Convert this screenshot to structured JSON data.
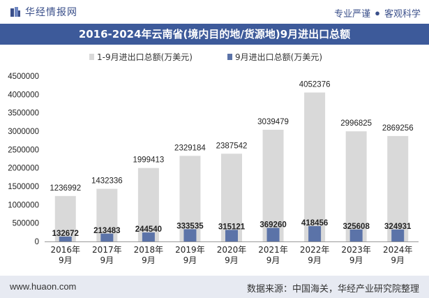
{
  "header": {
    "brand": "华经情报网",
    "slogan_left": "专业严谨",
    "slogan_sep": "●",
    "slogan_right": "客观科学"
  },
  "chart_data": {
    "type": "bar",
    "title": "2016-2024年云南省(境内目的地/货源地)9月进出口总额",
    "categories": [
      "2016年\n9月",
      "2017年\n9月",
      "2018年\n9月",
      "2019年\n9月",
      "2020年\n9月",
      "2021年\n9月",
      "2022年\n9月",
      "2023年\n9月",
      "2024年\n9月"
    ],
    "series": [
      {
        "name": "1-9月进出口总额(万美元)",
        "color": "#d9d9d9",
        "values": [
          1236992,
          1432336,
          1999413,
          2329184,
          2387542,
          3039479,
          4052376,
          2996825,
          2869256
        ]
      },
      {
        "name": "9月进出口总额(万美元)",
        "color": "#5b73a8",
        "values": [
          132672,
          213483,
          244540,
          333535,
          315121,
          369260,
          418456,
          325608,
          324931
        ]
      }
    ],
    "yticks": [
      "0",
      "500000",
      "1000000",
      "1500000",
      "2000000",
      "2500000",
      "3000000",
      "3500000",
      "4000000",
      "4500000"
    ],
    "ylim": [
      0,
      4500000
    ],
    "legend_position": "top-center",
    "grid": false
  },
  "footer": {
    "site": "www.huaon.com",
    "source": "数据来源：中国海关，华经产业研究院整理"
  }
}
